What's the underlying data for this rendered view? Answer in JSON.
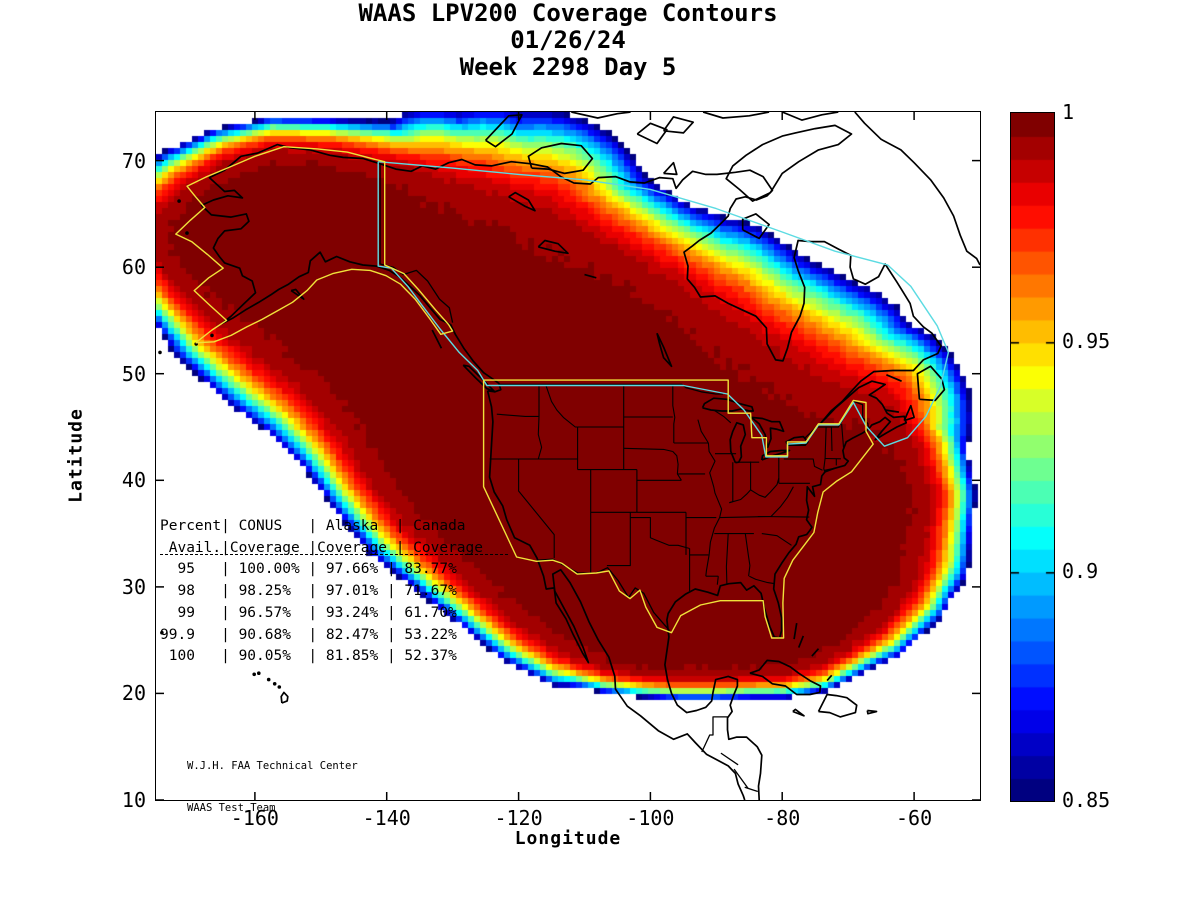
{
  "title": {
    "line1": "WAAS LPV200 Coverage Contours",
    "line2": "01/26/24",
    "line3": "Week 2298 Day 5"
  },
  "axes": {
    "xlabel": "Longitude",
    "ylabel": "Latitude",
    "xtick_labels": [
      "-160",
      "-140",
      "-120",
      "-100",
      "-80",
      "-60"
    ],
    "ytick_labels": [
      "70",
      "60",
      "50",
      "40",
      "30",
      "20",
      "10"
    ]
  },
  "colorbar": {
    "tick_labels": [
      "1",
      "0.95",
      "0.9",
      "0.85"
    ],
    "tick_values": [
      1,
      0.95,
      0.9,
      0.85
    ]
  },
  "coverage_table": {
    "lines": [
      "Percent| CONUS   | Alaska  | Canada",
      " Avail.|Coverage |Coverage | Coverage",
      "  95   | 100.00% | 97.66% | 83.77%",
      "  98   | 98.25%  | 97.01% | 71.67%",
      "  99   | 96.57%  | 93.24% | 61.70%",
      "99.9   | 90.68%  | 82.47% | 53.22%",
      " 100   | 90.05%  | 81.85% | 52.37%"
    ]
  },
  "annotation": {
    "line1": "W.J.H. FAA Technical Center",
    "line2": "WAAS Test Team"
  },
  "colors": {
    "conus_alaska_boundary": "#f0e23a",
    "canada_boundary": "#5cdbe2",
    "coastline": "#000000",
    "background": "#ffffff"
  },
  "chart_data": {
    "type": "filled_contour_map",
    "title": "WAAS LPV200 Coverage Contours",
    "date": "01/26/24",
    "gps_week": 2298,
    "gps_day": 5,
    "xlabel": "Longitude",
    "ylabel": "Latitude",
    "xlim": [
      -175,
      -50
    ],
    "ylim": [
      10,
      74.56
    ],
    "xticks": [
      -160,
      -140,
      -120,
      -100,
      -80,
      -60
    ],
    "yticks": [
      70,
      60,
      50,
      40,
      30,
      20,
      10
    ],
    "grid": false,
    "colorbar": {
      "min": 0.85,
      "max": 1.0,
      "contour_interval": 0.005,
      "colormap": "jet",
      "ticks": [
        1,
        0.95,
        0.9,
        0.85
      ],
      "position": "right"
    },
    "availability_table": {
      "columns": [
        "Percent Avail.",
        "CONUS Coverage",
        "Alaska Coverage",
        "Canada Coverage"
      ],
      "rows": [
        {
          "percent_avail": 95,
          "conus": 100.0,
          "alaska": 97.66,
          "canada": 83.77
        },
        {
          "percent_avail": 98,
          "conus": 98.25,
          "alaska": 97.01,
          "canada": 71.67
        },
        {
          "percent_avail": 99,
          "conus": 96.57,
          "alaska": 93.24,
          "canada": 61.7
        },
        {
          "percent_avail": 99.9,
          "conus": 90.68,
          "alaska": 82.47,
          "canada": 53.22
        },
        {
          "percent_avail": 100,
          "conus": 90.05,
          "alaska": 81.85,
          "canada": 52.37
        }
      ]
    },
    "regions_outlined": [
      "CONUS service area (yellow)",
      "Alaska service area (yellow)",
      "Canada service area (cyan)"
    ],
    "credit": "W.J.H. FAA Technical Center / WAAS Test Team"
  }
}
